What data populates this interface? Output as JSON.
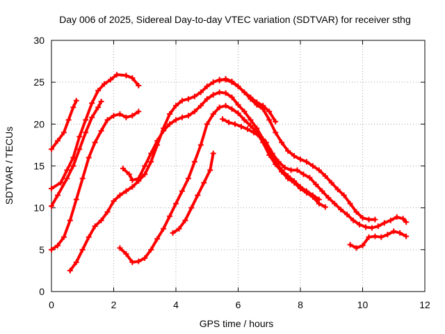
{
  "chart_data": {
    "type": "scatter",
    "title": "Day 006 of 2025, Sidereal Day-to-day VTEC variation (SDTVAR) for receiver sthg",
    "xlabel": "GPS time / hours",
    "ylabel": "SDTVAR / TECUs",
    "xlim": [
      0,
      12
    ],
    "ylim": [
      0,
      30
    ],
    "xticks": [
      0,
      2,
      4,
      6,
      8,
      10,
      12
    ],
    "yticks": [
      0,
      5,
      10,
      15,
      20,
      25,
      30
    ],
    "grid": true,
    "marker": "plus",
    "color": "#ff0000",
    "series": [
      {
        "name": "s1",
        "points": [
          [
            0,
            17.0
          ],
          [
            0.2,
            18.0
          ],
          [
            0.4,
            19.0
          ],
          [
            0.55,
            20.5
          ],
          [
            0.7,
            22.0
          ],
          [
            0.8,
            22.8
          ]
        ]
      },
      {
        "name": "s2",
        "points": [
          [
            0,
            12.3
          ],
          [
            0.3,
            13.0
          ],
          [
            0.5,
            14.5
          ],
          [
            0.7,
            16.0
          ],
          [
            0.9,
            18.5
          ],
          [
            1.1,
            20.5
          ],
          [
            1.3,
            22.5
          ],
          [
            1.5,
            24.0
          ],
          [
            1.7,
            24.8
          ],
          [
            1.9,
            25.3
          ],
          [
            2.1,
            25.9
          ],
          [
            2.4,
            25.8
          ],
          [
            2.6,
            25.5
          ],
          [
            2.8,
            24.6
          ]
        ]
      },
      {
        "name": "s3",
        "points": [
          [
            0,
            10.2
          ],
          [
            0.2,
            11.5
          ],
          [
            0.5,
            13.5
          ],
          [
            0.7,
            15.0
          ],
          [
            0.9,
            17.0
          ],
          [
            1.1,
            19.0
          ],
          [
            1.3,
            20.8
          ],
          [
            1.5,
            22.0
          ],
          [
            1.6,
            22.7
          ]
        ]
      },
      {
        "name": "s4",
        "points": [
          [
            0,
            5.0
          ],
          [
            0.2,
            5.5
          ],
          [
            0.4,
            6.5
          ],
          [
            0.6,
            8.5
          ],
          [
            0.8,
            11.0
          ],
          [
            1.0,
            13.5
          ],
          [
            1.2,
            16.0
          ],
          [
            1.4,
            17.8
          ],
          [
            1.6,
            19.2
          ],
          [
            1.8,
            20.5
          ],
          [
            2.0,
            21.0
          ],
          [
            2.2,
            21.2
          ],
          [
            2.4,
            20.8
          ],
          [
            2.6,
            21.0
          ],
          [
            2.8,
            21.5
          ]
        ]
      },
      {
        "name": "s5",
        "points": [
          [
            0.6,
            2.5
          ],
          [
            0.8,
            3.5
          ],
          [
            1.0,
            5.0
          ],
          [
            1.2,
            6.5
          ],
          [
            1.4,
            7.8
          ],
          [
            1.6,
            8.5
          ],
          [
            1.8,
            9.5
          ],
          [
            2.0,
            10.8
          ],
          [
            2.2,
            11.5
          ],
          [
            2.4,
            12.0
          ],
          [
            2.6,
            12.5
          ],
          [
            2.8,
            13.2
          ],
          [
            3.0,
            14.0
          ],
          [
            3.2,
            15.5
          ],
          [
            3.4,
            17.5
          ],
          [
            3.6,
            19.5
          ],
          [
            3.8,
            21.2
          ],
          [
            4.0,
            22.2
          ],
          [
            4.2,
            22.8
          ],
          [
            4.4,
            23.0
          ],
          [
            4.6,
            23.3
          ],
          [
            4.8,
            23.8
          ],
          [
            5.0,
            24.5
          ],
          [
            5.2,
            25.0
          ],
          [
            5.4,
            25.3
          ],
          [
            5.6,
            25.3
          ],
          [
            5.8,
            25.0
          ],
          [
            6.0,
            24.5
          ],
          [
            6.2,
            23.8
          ],
          [
            6.4,
            23.2
          ],
          [
            6.6,
            22.6
          ],
          [
            6.8,
            22.2
          ],
          [
            7.0,
            21.5
          ],
          [
            7.2,
            20.3
          ]
        ]
      },
      {
        "name": "s6",
        "points": [
          [
            2.3,
            14.7
          ],
          [
            2.5,
            14.0
          ],
          [
            2.6,
            13.3
          ],
          [
            2.8,
            13.5
          ],
          [
            3.0,
            15.0
          ],
          [
            3.2,
            16.5
          ],
          [
            3.4,
            18.0
          ],
          [
            3.6,
            19.2
          ],
          [
            3.8,
            20.0
          ],
          [
            4.0,
            20.5
          ],
          [
            4.2,
            20.8
          ],
          [
            4.4,
            21.0
          ],
          [
            4.6,
            21.5
          ],
          [
            4.8,
            22.2
          ],
          [
            5.0,
            23.0
          ],
          [
            5.2,
            23.5
          ],
          [
            5.4,
            23.8
          ],
          [
            5.6,
            23.7
          ],
          [
            5.8,
            23.2
          ],
          [
            6.0,
            22.3
          ],
          [
            6.2,
            21.5
          ],
          [
            6.4,
            20.5
          ],
          [
            6.6,
            19.5
          ],
          [
            6.8,
            18.2
          ],
          [
            7.0,
            17.0
          ],
          [
            7.2,
            15.5
          ],
          [
            7.4,
            14.5
          ],
          [
            7.6,
            13.8
          ],
          [
            7.8,
            13.2
          ],
          [
            8.0,
            12.5
          ],
          [
            8.2,
            12.0
          ],
          [
            8.4,
            11.5
          ],
          [
            8.6,
            11.0
          ]
        ]
      },
      {
        "name": "s7",
        "points": [
          [
            2.2,
            5.2
          ],
          [
            2.4,
            4.5
          ],
          [
            2.6,
            3.5
          ],
          [
            2.8,
            3.6
          ],
          [
            3.0,
            4.0
          ],
          [
            3.2,
            5.0
          ],
          [
            3.4,
            6.3
          ],
          [
            3.6,
            7.5
          ],
          [
            3.8,
            9.0
          ],
          [
            4.0,
            10.5
          ],
          [
            4.2,
            12.0
          ],
          [
            4.4,
            13.5
          ],
          [
            4.6,
            15.5
          ],
          [
            4.8,
            17.5
          ],
          [
            5.0,
            20.0
          ],
          [
            5.2,
            21.2
          ],
          [
            5.4,
            22.0
          ],
          [
            5.6,
            22.2
          ],
          [
            5.8,
            21.8
          ],
          [
            6.0,
            21.3
          ],
          [
            6.2,
            20.5
          ],
          [
            6.4,
            19.8
          ],
          [
            6.6,
            19.0
          ],
          [
            6.8,
            17.8
          ],
          [
            7.0,
            16.3
          ],
          [
            7.2,
            15.2
          ],
          [
            7.4,
            14.3
          ],
          [
            7.6,
            13.5
          ],
          [
            7.8,
            13.0
          ],
          [
            8.0,
            12.3
          ],
          [
            8.2,
            11.8
          ],
          [
            8.4,
            11.3
          ],
          [
            8.6,
            10.5
          ],
          [
            8.8,
            10.1
          ]
        ]
      },
      {
        "name": "s8",
        "points": [
          [
            3.9,
            7.0
          ],
          [
            4.1,
            7.5
          ],
          [
            4.3,
            8.5
          ],
          [
            4.5,
            10.0
          ],
          [
            4.7,
            11.5
          ],
          [
            4.9,
            13.0
          ],
          [
            5.1,
            14.5
          ],
          [
            5.2,
            16.5
          ]
        ]
      },
      {
        "name": "s9",
        "points": [
          [
            5.4,
            25.2
          ],
          [
            5.6,
            25.4
          ],
          [
            5.8,
            25.1
          ],
          [
            6.0,
            24.5
          ],
          [
            6.2,
            23.8
          ],
          [
            6.4,
            23.0
          ],
          [
            6.6,
            22.3
          ],
          [
            6.8,
            21.8
          ],
          [
            7.0,
            20.5
          ],
          [
            7.2,
            19.0
          ],
          [
            7.4,
            17.8
          ],
          [
            7.6,
            16.8
          ],
          [
            7.8,
            16.2
          ],
          [
            8.0,
            15.8
          ],
          [
            8.2,
            15.5
          ],
          [
            8.4,
            15.0
          ],
          [
            8.6,
            14.5
          ],
          [
            8.8,
            13.8
          ],
          [
            9.0,
            13.0
          ],
          [
            9.2,
            12.2
          ],
          [
            9.4,
            11.5
          ],
          [
            9.6,
            10.5
          ],
          [
            9.8,
            9.5
          ],
          [
            10.0,
            8.8
          ],
          [
            10.2,
            8.6
          ],
          [
            10.4,
            8.6
          ]
        ]
      },
      {
        "name": "s10",
        "points": [
          [
            5.5,
            20.6
          ],
          [
            5.7,
            20.2
          ],
          [
            5.9,
            20.0
          ],
          [
            6.1,
            19.7
          ],
          [
            6.3,
            19.4
          ],
          [
            6.5,
            19.0
          ],
          [
            6.7,
            18.5
          ],
          [
            6.9,
            17.8
          ],
          [
            7.1,
            16.5
          ],
          [
            7.3,
            15.5
          ],
          [
            7.5,
            14.8
          ],
          [
            7.7,
            14.5
          ],
          [
            7.9,
            14.5
          ],
          [
            8.1,
            14.0
          ],
          [
            8.3,
            13.6
          ],
          [
            8.5,
            12.8
          ],
          [
            8.7,
            12.0
          ],
          [
            8.9,
            11.2
          ],
          [
            9.1,
            10.5
          ],
          [
            9.3,
            9.8
          ],
          [
            9.5,
            9.2
          ],
          [
            9.7,
            8.5
          ],
          [
            9.9,
            8.0
          ],
          [
            10.1,
            7.7
          ],
          [
            10.3,
            7.6
          ],
          [
            10.5,
            7.8
          ],
          [
            10.7,
            8.2
          ],
          [
            10.9,
            8.5
          ],
          [
            11.1,
            8.9
          ],
          [
            11.3,
            8.7
          ],
          [
            11.4,
            8.3
          ]
        ]
      },
      {
        "name": "s11",
        "points": [
          [
            9.6,
            5.6
          ],
          [
            9.8,
            5.2
          ],
          [
            10.0,
            5.5
          ],
          [
            10.2,
            6.5
          ],
          [
            10.4,
            6.6
          ],
          [
            10.6,
            6.5
          ],
          [
            10.8,
            6.8
          ],
          [
            11.0,
            7.2
          ],
          [
            11.2,
            7.0
          ],
          [
            11.4,
            6.6
          ]
        ]
      }
    ]
  }
}
